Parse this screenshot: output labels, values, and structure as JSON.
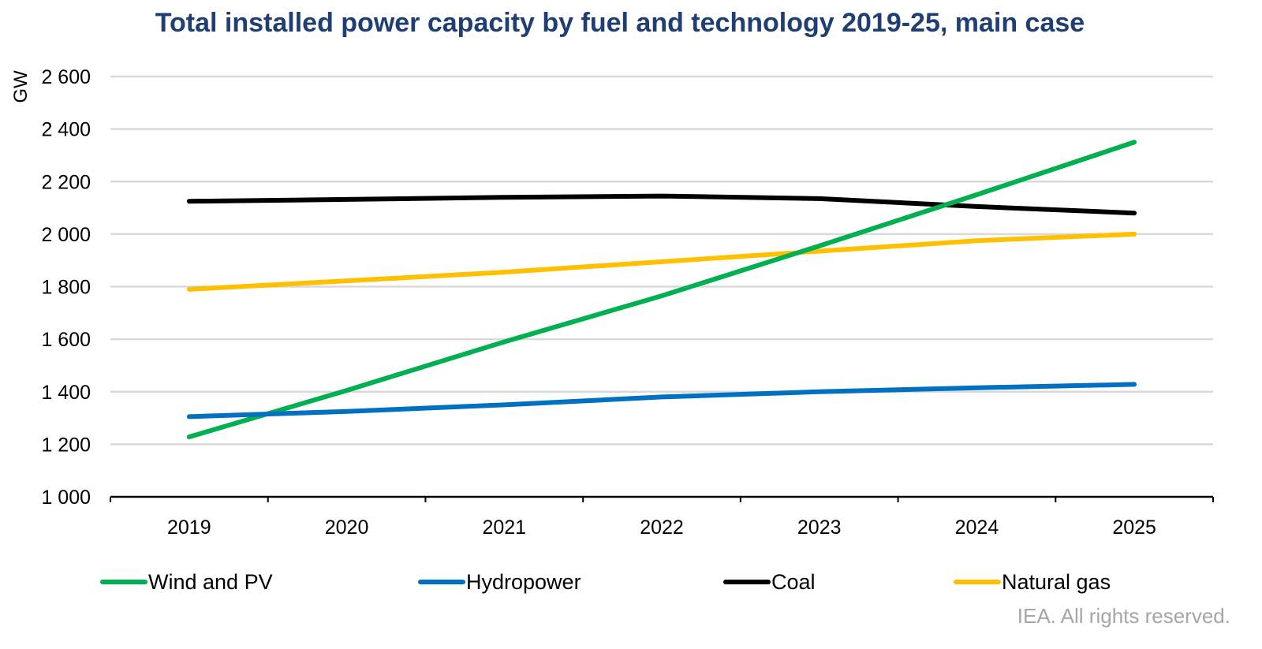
{
  "chart_data": {
    "type": "line",
    "title": "Total installed power capacity by fuel and technology 2019-25, main case",
    "ylabel": "GW",
    "xlabel": "",
    "ylim": [
      1000,
      2600
    ],
    "yticks": [
      1000,
      1200,
      1400,
      1600,
      1800,
      2000,
      2200,
      2400,
      2600
    ],
    "ytick_labels": [
      "1 000",
      "1 200",
      "1 400",
      "1 600",
      "1 800",
      "2 000",
      "2 200",
      "2 400",
      "2 600"
    ],
    "categories": [
      "2019",
      "2020",
      "2021",
      "2022",
      "2023",
      "2024",
      "2025"
    ],
    "grid": true,
    "legend_position": "bottom",
    "series": [
      {
        "name": "Wind and PV",
        "color": "#00b050",
        "values": [
          1228,
          1405,
          1590,
          1765,
          1955,
          2150,
          2350
        ]
      },
      {
        "name": "Hydropower",
        "color": "#0070c0",
        "values": [
          1305,
          1325,
          1350,
          1380,
          1400,
          1415,
          1428
        ]
      },
      {
        "name": "Coal",
        "color": "#000000",
        "values": [
          2125,
          2132,
          2140,
          2145,
          2135,
          2105,
          2080
        ]
      },
      {
        "name": "Natural gas",
        "color": "#ffc000",
        "values": [
          1790,
          1822,
          1855,
          1895,
          1935,
          1975,
          2000
        ]
      }
    ]
  },
  "footer": {
    "credit": "IEA. All rights reserved."
  },
  "colors": {
    "title": "#1f3e73",
    "grid": "#d9d9d9"
  }
}
